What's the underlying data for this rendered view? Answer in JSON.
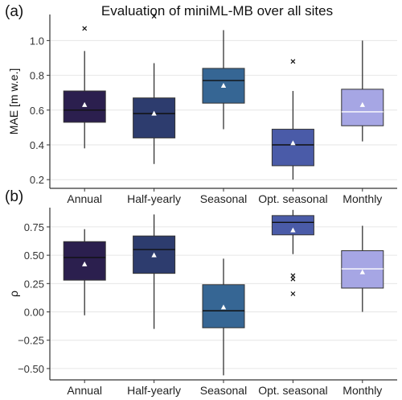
{
  "figure": {
    "title": "Evaluation of miniML-MB over all sites",
    "panel_a_label": "(a)",
    "panel_b_label": "(b)"
  },
  "colors": {
    "Annual": "#2b1f4e",
    "Half-yearly": "#2d3c6e",
    "Seasonal": "#366694",
    "Opt. seasonal": "#4a5ba8",
    "Monthly": "#a6a6e4",
    "grid": "#e6e6e6",
    "axis": "#333333"
  },
  "chart_data": [
    {
      "type": "box",
      "panel": "(a)",
      "title": "Evaluation of miniML-MB over all sites",
      "xlabel": "",
      "ylabel": "MAE [m w.e.]",
      "categories": [
        "Annual",
        "Half-yearly",
        "Seasonal",
        "Opt. seasonal",
        "Monthly"
      ],
      "ylim": [
        0.15,
        1.15
      ],
      "yticks": [
        0.2,
        0.4,
        0.6,
        0.8,
        1.0
      ],
      "yticklabels": [
        "0.2",
        "0.4",
        "0.6",
        "0.8",
        "1.0"
      ],
      "grid": true,
      "boxes": [
        {
          "category": "Annual",
          "whisker_low": 0.38,
          "q1": 0.53,
          "median": 0.6,
          "q3": 0.71,
          "whisker_high": 0.94,
          "mean": 0.63,
          "outliers": [
            1.07
          ]
        },
        {
          "category": "Half-yearly",
          "whisker_low": 0.29,
          "q1": 0.44,
          "median": 0.58,
          "q3": 0.67,
          "whisker_high": 0.87,
          "mean": 0.58,
          "outliers": [
            1.14
          ]
        },
        {
          "category": "Seasonal",
          "whisker_low": 0.49,
          "q1": 0.64,
          "median": 0.77,
          "q3": 0.84,
          "whisker_high": 1.06,
          "mean": 0.74,
          "outliers": []
        },
        {
          "category": "Opt. seasonal",
          "whisker_low": 0.2,
          "q1": 0.28,
          "median": 0.4,
          "q3": 0.49,
          "whisker_high": 0.71,
          "mean": 0.41,
          "outliers": [
            0.88
          ]
        },
        {
          "category": "Monthly",
          "whisker_low": 0.42,
          "q1": 0.51,
          "median": 0.59,
          "q3": 0.72,
          "whisker_high": 1.0,
          "mean": 0.63,
          "outliers": []
        }
      ]
    },
    {
      "type": "box",
      "panel": "(b)",
      "xlabel": "",
      "ylabel": "ρ",
      "categories": [
        "Annual",
        "Half-yearly",
        "Seasonal",
        "Opt. seasonal",
        "Monthly"
      ],
      "ylim": [
        -0.6,
        0.92
      ],
      "yticks": [
        -0.5,
        -0.25,
        0.0,
        0.25,
        0.5,
        0.75
      ],
      "yticklabels": [
        "−0.50",
        "−0.25",
        "0.00",
        "0.25",
        "0.50",
        "0.75"
      ],
      "grid": true,
      "boxes": [
        {
          "category": "Annual",
          "whisker_low": -0.03,
          "q1": 0.28,
          "median": 0.48,
          "q3": 0.62,
          "whisker_high": 0.73,
          "mean": 0.42,
          "outliers": []
        },
        {
          "category": "Half-yearly",
          "whisker_low": -0.15,
          "q1": 0.34,
          "median": 0.55,
          "q3": 0.67,
          "whisker_high": 0.86,
          "mean": 0.5,
          "outliers": []
        },
        {
          "category": "Seasonal",
          "whisker_low": -0.56,
          "q1": -0.14,
          "median": 0.01,
          "q3": 0.24,
          "whisker_high": 0.47,
          "mean": 0.04,
          "outliers": []
        },
        {
          "category": "Opt. seasonal",
          "whisker_low": 0.51,
          "q1": 0.68,
          "median": 0.79,
          "q3": 0.85,
          "whisker_high": 0.9,
          "mean": 0.72,
          "outliers": [
            0.32,
            0.29,
            0.16
          ]
        },
        {
          "category": "Monthly",
          "whisker_low": 0.0,
          "q1": 0.21,
          "median": 0.38,
          "q3": 0.54,
          "whisker_high": 0.76,
          "mean": 0.35,
          "outliers": []
        }
      ]
    }
  ]
}
